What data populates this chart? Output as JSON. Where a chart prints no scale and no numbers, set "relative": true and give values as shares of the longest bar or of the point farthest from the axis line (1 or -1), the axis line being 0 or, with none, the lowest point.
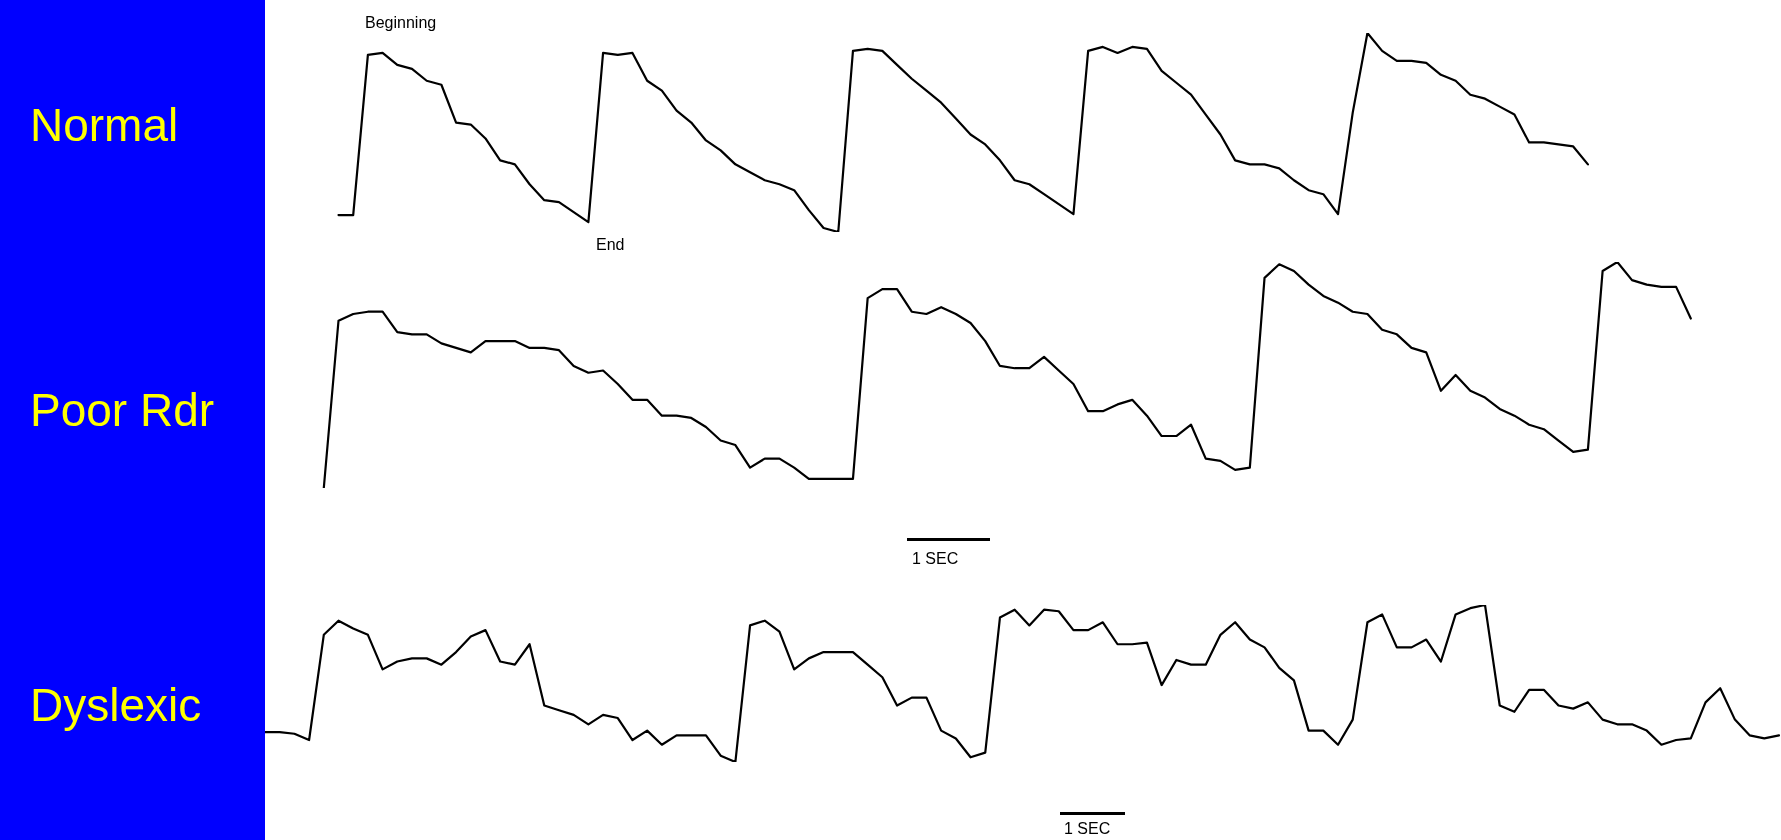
{
  "chart_data": [
    {
      "type": "line",
      "title": "Normal",
      "relative": true,
      "legend": false,
      "marker": "none",
      "line_style": "solid",
      "annotations": [
        "Beginning",
        "End"
      ],
      "categories": [
        null,
        null,
        null,
        null,
        null,
        null,
        null,
        null,
        null,
        null,
        null,
        null,
        null,
        null,
        null,
        null,
        null,
        null,
        null,
        null,
        null,
        null,
        null,
        null,
        null,
        null,
        null,
        null,
        null,
        null,
        null,
        null,
        null,
        null,
        null,
        null,
        null,
        null,
        null,
        null,
        null,
        null,
        null,
        null,
        null,
        null,
        null,
        null,
        null,
        null,
        null,
        null,
        null,
        null,
        null,
        null,
        null,
        null,
        null,
        null,
        null,
        null,
        null,
        null,
        null,
        null,
        null,
        null,
        null,
        null,
        null,
        null,
        null,
        null,
        null,
        null,
        null,
        null,
        null,
        null,
        null,
        null,
        null,
        null,
        null,
        null,
        null,
        null,
        null,
        null,
        null,
        null,
        null,
        null,
        null,
        null,
        null,
        null,
        null,
        null,
        null,
        null,
        null,
        null
      ],
      "series": [
        {
          "color": "#000000",
          "values": [
            null,
            null,
            null,
            null,
            null,
            0.085,
            0.085,
            0.89,
            0.9,
            0.84,
            0.82,
            0.76,
            0.74,
            0.55,
            0.54,
            0.47,
            0.36,
            0.34,
            0.24,
            0.16,
            0.15,
            0.1,
            0.05,
            0.9,
            0.89,
            0.9,
            0.76,
            0.71,
            0.61,
            0.55,
            0.46,
            0.41,
            0.34,
            0.3,
            0.26,
            0.24,
            0.21,
            0.11,
            0.02,
            0,
            0.91,
            0.92,
            0.91,
            0.84,
            0.77,
            0.71,
            0.65,
            0.57,
            0.49,
            0.44,
            0.36,
            0.26,
            0.24,
            0.19,
            0.14,
            0.09,
            0.91,
            0.93,
            0.9,
            0.93,
            0.92,
            0.81,
            0.75,
            0.69,
            0.59,
            0.49,
            0.36,
            0.34,
            0.34,
            0.32,
            0.26,
            0.21,
            0.19,
            0.09,
            0.6,
            1,
            0.91,
            0.86,
            0.86,
            0.85,
            0.79,
            0.76,
            0.69,
            0.67,
            0.63,
            0.59,
            0.45,
            0.45,
            0.44,
            0.43,
            0.34,
            null,
            null,
            null,
            null,
            null,
            null,
            null,
            null,
            null,
            null,
            null,
            null,
            null
          ]
        }
      ]
    },
    {
      "type": "line",
      "title": "Poor Rdr",
      "relative": true,
      "legend": false,
      "marker": "none",
      "line_style": "solid",
      "annotations": [
        "1 SEC"
      ],
      "categories": [
        null,
        null,
        null,
        null,
        null,
        null,
        null,
        null,
        null,
        null,
        null,
        null,
        null,
        null,
        null,
        null,
        null,
        null,
        null,
        null,
        null,
        null,
        null,
        null,
        null,
        null,
        null,
        null,
        null,
        null,
        null,
        null,
        null,
        null,
        null,
        null,
        null,
        null,
        null,
        null,
        null,
        null,
        null,
        null,
        null,
        null,
        null,
        null,
        null,
        null,
        null,
        null,
        null,
        null,
        null,
        null,
        null,
        null,
        null,
        null,
        null,
        null,
        null,
        null,
        null,
        null,
        null,
        null,
        null,
        null,
        null,
        null,
        null,
        null,
        null,
        null,
        null,
        null,
        null,
        null,
        null,
        null,
        null,
        null,
        null,
        null,
        null,
        null,
        null,
        null,
        null,
        null,
        null,
        null,
        null,
        null,
        null,
        null,
        null,
        null,
        null,
        null,
        null,
        null
      ],
      "series": [
        {
          "color": "#000000",
          "values": [
            null,
            null,
            null,
            null,
            0,
            0.74,
            0.77,
            0.78,
            0.78,
            0.69,
            0.68,
            0.68,
            0.64,
            0.62,
            0.6,
            0.65,
            0.65,
            0.65,
            0.62,
            0.62,
            0.61,
            0.54,
            0.51,
            0.52,
            0.46,
            0.39,
            0.39,
            0.32,
            0.32,
            0.31,
            0.27,
            0.21,
            0.19,
            0.09,
            0.13,
            0.13,
            0.09,
            0.04,
            0.04,
            0.04,
            0.04,
            0.84,
            0.88,
            0.88,
            0.78,
            0.77,
            0.8,
            0.77,
            0.73,
            0.65,
            0.54,
            0.53,
            0.53,
            0.58,
            0.52,
            0.46,
            0.34,
            0.34,
            0.37,
            0.39,
            0.32,
            0.23,
            0.23,
            0.28,
            0.13,
            0.12,
            0.08,
            0.09,
            0.93,
            0.99,
            0.96,
            0.9,
            0.85,
            0.82,
            0.78,
            0.77,
            0.7,
            0.68,
            0.62,
            0.6,
            0.43,
            0.5,
            0.43,
            0.4,
            0.35,
            0.32,
            0.28,
            0.26,
            0.21,
            0.16,
            0.17,
            0.96,
            1,
            0.92,
            0.9,
            0.89,
            0.89,
            0.75,
            null,
            null,
            null,
            null,
            null,
            null
          ]
        }
      ]
    },
    {
      "type": "line",
      "title": "Dyslexic",
      "relative": true,
      "legend": false,
      "marker": "none",
      "line_style": "solid",
      "annotations": [
        "1 SEC"
      ],
      "categories": [
        null,
        null,
        null,
        null,
        null,
        null,
        null,
        null,
        null,
        null,
        null,
        null,
        null,
        null,
        null,
        null,
        null,
        null,
        null,
        null,
        null,
        null,
        null,
        null,
        null,
        null,
        null,
        null,
        null,
        null,
        null,
        null,
        null,
        null,
        null,
        null,
        null,
        null,
        null,
        null,
        null,
        null,
        null,
        null,
        null,
        null,
        null,
        null,
        null,
        null,
        null,
        null,
        null,
        null,
        null,
        null,
        null,
        null,
        null,
        null,
        null,
        null,
        null,
        null,
        null,
        null,
        null,
        null,
        null,
        null,
        null,
        null,
        null,
        null,
        null,
        null,
        null,
        null,
        null,
        null,
        null,
        null,
        null,
        null,
        null,
        null,
        null,
        null,
        null,
        null,
        null,
        null,
        null,
        null,
        null,
        null,
        null,
        null,
        null,
        null,
        null,
        null,
        null,
        null
      ],
      "series": [
        {
          "color": "#000000",
          "values": [
            0.19,
            0.19,
            0.18,
            0.14,
            0.81,
            0.9,
            0.85,
            0.81,
            0.59,
            0.64,
            0.66,
            0.66,
            0.62,
            0.7,
            0.8,
            0.84,
            0.64,
            0.62,
            0.75,
            0.36,
            0.33,
            0.3,
            0.24,
            0.3,
            0.28,
            0.14,
            0.2,
            0.11,
            0.17,
            0.17,
            0.17,
            0.04,
            0,
            0.87,
            0.9,
            0.83,
            0.59,
            0.66,
            0.7,
            0.7,
            0.7,
            0.62,
            0.54,
            0.36,
            0.41,
            0.41,
            0.2,
            0.15,
            0.03,
            0.06,
            0.92,
            0.97,
            0.87,
            0.97,
            0.96,
            0.84,
            0.84,
            0.89,
            0.75,
            0.75,
            0.76,
            0.49,
            0.65,
            0.62,
            0.62,
            0.81,
            0.89,
            0.78,
            0.73,
            0.6,
            0.52,
            0.2,
            0.2,
            0.11,
            0.27,
            0.89,
            0.94,
            0.73,
            0.73,
            0.78,
            0.64,
            0.94,
            0.98,
            1,
            0.36,
            0.32,
            0.46,
            0.46,
            0.36,
            0.34,
            0.38,
            0.27,
            0.24,
            0.24,
            0.2,
            0.11,
            0.14,
            0.15,
            0.38,
            0.47,
            0.27,
            0.17,
            0.15,
            0.17
          ]
        }
      ]
    }
  ]
}
